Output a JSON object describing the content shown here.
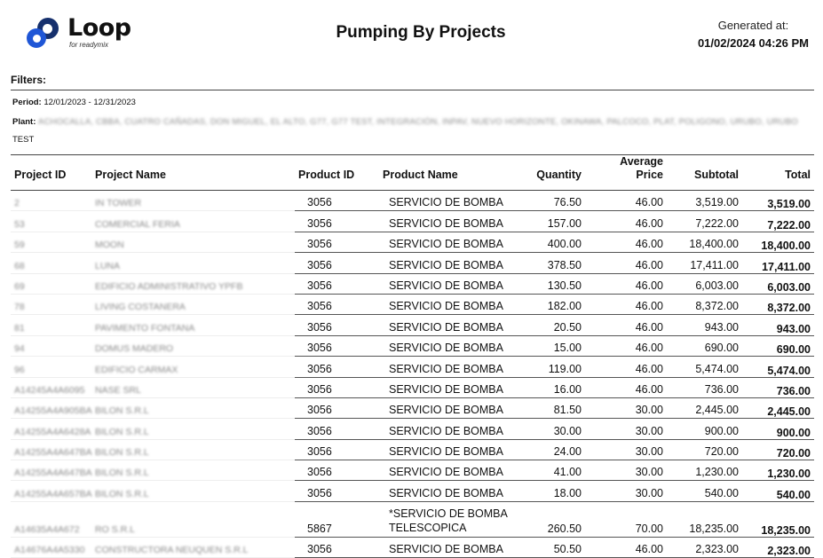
{
  "header": {
    "brand": "Loop",
    "brand_tagline": "for readymix",
    "title": "Pumping By Projects",
    "generated_label": "Generated at:",
    "generated_value": "01/02/2024 04:26 PM"
  },
  "filters": {
    "heading": "Filters:",
    "period_label": "Period:",
    "period_value": "12/01/2023 - 12/31/2023",
    "plant_label": "Plant:",
    "plant_value": "ACHOCALLA, CBBA, CUATRO CAÑADAS, DON MIGUEL, EL ALTO, G77, G77 TEST, INTEGRACIÓN, INPAV, NUEVO HORIZONTE, OKINAWA, PALCOCO, PLAT, POLIGONO, URUBO, URUBO",
    "plant_value_2": "TEST"
  },
  "table": {
    "columns": {
      "project_id": "Project ID",
      "project_name": "Project Name",
      "product_id": "Product ID",
      "product_name": "Product Name",
      "quantity": "Quantity",
      "average_price": "Average Price",
      "subtotal": "Subtotal",
      "total": "Total"
    },
    "rows": [
      {
        "project_id": "2",
        "project_name": "IN TOWER",
        "product_id": "3056",
        "product_name": "SERVICIO DE BOMBA",
        "quantity": "76.50",
        "average_price": "46.00",
        "subtotal": "3,519.00",
        "total": "3,519.00"
      },
      {
        "project_id": "53",
        "project_name": "COMERCIAL FERIA",
        "product_id": "3056",
        "product_name": "SERVICIO DE BOMBA",
        "quantity": "157.00",
        "average_price": "46.00",
        "subtotal": "7,222.00",
        "total": "7,222.00"
      },
      {
        "project_id": "59",
        "project_name": "MOON",
        "product_id": "3056",
        "product_name": "SERVICIO DE BOMBA",
        "quantity": "400.00",
        "average_price": "46.00",
        "subtotal": "18,400.00",
        "total": "18,400.00"
      },
      {
        "project_id": "68",
        "project_name": "LUNA",
        "product_id": "3056",
        "product_name": "SERVICIO DE BOMBA",
        "quantity": "378.50",
        "average_price": "46.00",
        "subtotal": "17,411.00",
        "total": "17,411.00"
      },
      {
        "project_id": "69",
        "project_name": "EDIFICIO ADMINISTRATIVO YPFB",
        "product_id": "3056",
        "product_name": "SERVICIO DE BOMBA",
        "quantity": "130.50",
        "average_price": "46.00",
        "subtotal": "6,003.00",
        "total": "6,003.00"
      },
      {
        "project_id": "78",
        "project_name": "LIVING COSTANERA",
        "product_id": "3056",
        "product_name": "SERVICIO DE BOMBA",
        "quantity": "182.00",
        "average_price": "46.00",
        "subtotal": "8,372.00",
        "total": "8,372.00"
      },
      {
        "project_id": "81",
        "project_name": "PAVIMENTO FONTANA",
        "product_id": "3056",
        "product_name": "SERVICIO DE BOMBA",
        "quantity": "20.50",
        "average_price": "46.00",
        "subtotal": "943.00",
        "total": "943.00"
      },
      {
        "project_id": "94",
        "project_name": "DOMUS MADERO",
        "product_id": "3056",
        "product_name": "SERVICIO DE BOMBA",
        "quantity": "15.00",
        "average_price": "46.00",
        "subtotal": "690.00",
        "total": "690.00"
      },
      {
        "project_id": "96",
        "project_name": "EDIFICIO CARMAX",
        "product_id": "3056",
        "product_name": "SERVICIO DE BOMBA",
        "quantity": "119.00",
        "average_price": "46.00",
        "subtotal": "5,474.00",
        "total": "5,474.00"
      },
      {
        "project_id": "A14245A4A6095",
        "project_name": "NASE SRL",
        "product_id": "3056",
        "product_name": "SERVICIO DE BOMBA",
        "quantity": "16.00",
        "average_price": "46.00",
        "subtotal": "736.00",
        "total": "736.00"
      },
      {
        "project_id": "A14255A4A905BA",
        "project_name": "BILON S.R.L",
        "product_id": "3056",
        "product_name": "SERVICIO DE BOMBA",
        "quantity": "81.50",
        "average_price": "30.00",
        "subtotal": "2,445.00",
        "total": "2,445.00"
      },
      {
        "project_id": "A14255A4A6428A",
        "project_name": "BILON S.R.L",
        "product_id": "3056",
        "product_name": "SERVICIO DE BOMBA",
        "quantity": "30.00",
        "average_price": "30.00",
        "subtotal": "900.00",
        "total": "900.00"
      },
      {
        "project_id": "A14255A4A647BA",
        "project_name": "BILON S.R.L",
        "product_id": "3056",
        "product_name": "SERVICIO DE BOMBA",
        "quantity": "24.00",
        "average_price": "30.00",
        "subtotal": "720.00",
        "total": "720.00"
      },
      {
        "project_id": "A14255A4A647BA",
        "project_name": "BILON S.R.L",
        "product_id": "3056",
        "product_name": "SERVICIO DE BOMBA",
        "quantity": "41.00",
        "average_price": "30.00",
        "subtotal": "1,230.00",
        "total": "1,230.00"
      },
      {
        "project_id": "A14255A4A657BA",
        "project_name": "BILON S.R.L",
        "product_id": "3056",
        "product_name": "SERVICIO DE BOMBA",
        "quantity": "18.00",
        "average_price": "30.00",
        "subtotal": "540.00",
        "total": "540.00"
      },
      {
        "project_id": "A14635A4A672",
        "project_name": "RO S.R.L",
        "product_id": "5867",
        "product_name": "*SERVICIO DE BOMBA TELESCOPICA",
        "quantity": "260.50",
        "average_price": "70.00",
        "subtotal": "18,235.00",
        "total": "18,235.00"
      },
      {
        "project_id": "A14676A4A5330",
        "project_name": "CONSTRUCTORA NEUQUEN S.R.L",
        "product_id": "3056",
        "product_name": "SERVICIO DE BOMBA",
        "quantity": "50.50",
        "average_price": "46.00",
        "subtotal": "2,323.00",
        "total": "2,323.00"
      }
    ]
  }
}
